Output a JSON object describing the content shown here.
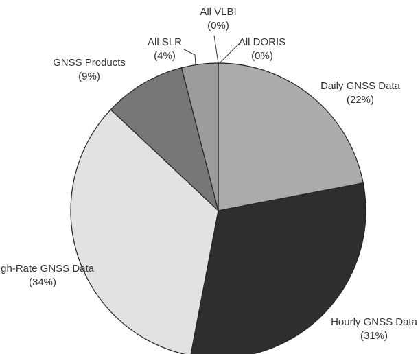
{
  "chart_data": {
    "type": "pie",
    "categories": [
      "All VLBI",
      "All DORIS",
      "Daily GNSS Data",
      "Hourly GNSS Data",
      "High-Rate GNSS Data",
      "GNSS Products",
      "All SLR"
    ],
    "values": [
      0,
      0,
      22,
      31,
      34,
      9,
      4
    ],
    "value_labels": [
      "(0%)",
      "(0%)",
      "(22%)",
      "(31%)",
      "(34%)",
      "(9%)",
      "(4%)"
    ],
    "colors": [
      "#8a8a8a",
      "#8a8a8a",
      "#ababab",
      "#2e2e2e",
      "#e2e2e2",
      "#777777",
      "#9c9c9c"
    ]
  }
}
